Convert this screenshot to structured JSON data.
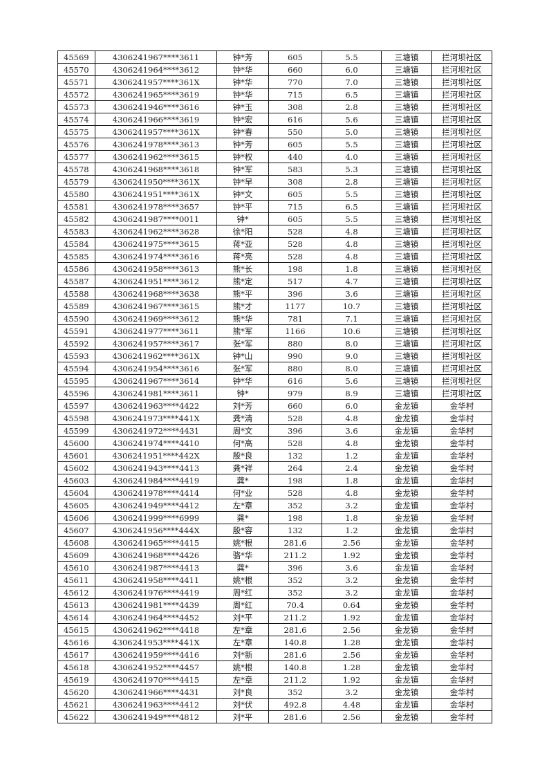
{
  "rows": [
    [
      "45569",
      "4306241967****3611",
      "钟*芳",
      "605",
      "5.5",
      "三塘镇",
      "拦河坝社区"
    ],
    [
      "45570",
      "4306241964****3612",
      "钟*华",
      "660",
      "6.0",
      "三塘镇",
      "拦河坝社区"
    ],
    [
      "45571",
      "4306241957****361X",
      "钟*华",
      "770",
      "7.0",
      "三塘镇",
      "拦河坝社区"
    ],
    [
      "45572",
      "4306241965****3619",
      "钟*华",
      "715",
      "6.5",
      "三塘镇",
      "拦河坝社区"
    ],
    [
      "45573",
      "4306241946****3616",
      "钟*玉",
      "308",
      "2.8",
      "三塘镇",
      "拦河坝社区"
    ],
    [
      "45574",
      "4306241966****3619",
      "钟*宏",
      "616",
      "5.6",
      "三塘镇",
      "拦河坝社区"
    ],
    [
      "45575",
      "4306241957****361X",
      "钟*春",
      "550",
      "5.0",
      "三塘镇",
      "拦河坝社区"
    ],
    [
      "45576",
      "4306241978****3613",
      "钟*芳",
      "605",
      "5.5",
      "三塘镇",
      "拦河坝社区"
    ],
    [
      "45577",
      "4306241962****3615",
      "钟*权",
      "440",
      "4.0",
      "三塘镇",
      "拦河坝社区"
    ],
    [
      "45578",
      "4306241968****3618",
      "钟*军",
      "583",
      "5.3",
      "三塘镇",
      "拦河坝社区"
    ],
    [
      "45579",
      "4306241950****361X",
      "钟*早",
      "308",
      "2.8",
      "三塘镇",
      "拦河坝社区"
    ],
    [
      "45580",
      "4306241951****361X",
      "钟*文",
      "605",
      "5.5",
      "三塘镇",
      "拦河坝社区"
    ],
    [
      "45581",
      "4306241978****3657",
      "钟*平",
      "715",
      "6.5",
      "三塘镇",
      "拦河坝社区"
    ],
    [
      "45582",
      "4306241987****0011",
      "钟*",
      "605",
      "5.5",
      "三塘镇",
      "拦河坝社区"
    ],
    [
      "45583",
      "4306241962****3628",
      "徐*阳",
      "528",
      "4.8",
      "三塘镇",
      "拦河坝社区"
    ],
    [
      "45584",
      "4306241975****3615",
      "蒋*亚",
      "528",
      "4.8",
      "三塘镇",
      "拦河坝社区"
    ],
    [
      "45585",
      "4306241974****3616",
      "蒋*亮",
      "528",
      "4.8",
      "三塘镇",
      "拦河坝社区"
    ],
    [
      "45586",
      "4306241958****3613",
      "熊*长",
      "198",
      "1.8",
      "三塘镇",
      "拦河坝社区"
    ],
    [
      "45587",
      "4306241951****3612",
      "熊*定",
      "517",
      "4.7",
      "三塘镇",
      "拦河坝社区"
    ],
    [
      "45588",
      "4306241968****3638",
      "熊*平",
      "396",
      "3.6",
      "三塘镇",
      "拦河坝社区"
    ],
    [
      "45589",
      "4306241967****3615",
      "熊*才",
      "1177",
      "10.7",
      "三塘镇",
      "拦河坝社区"
    ],
    [
      "45590",
      "4306241969****3612",
      "熊*华",
      "781",
      "7.1",
      "三塘镇",
      "拦河坝社区"
    ],
    [
      "45591",
      "4306241977****3611",
      "熊*军",
      "1166",
      "10.6",
      "三塘镇",
      "拦河坝社区"
    ],
    [
      "45592",
      "4306241957****3617",
      "张*军",
      "880",
      "8.0",
      "三塘镇",
      "拦河坝社区"
    ],
    [
      "45593",
      "4306241962****361X",
      "钟*山",
      "990",
      "9.0",
      "三塘镇",
      "拦河坝社区"
    ],
    [
      "45594",
      "4306241954****3616",
      "张*军",
      "880",
      "8.0",
      "三塘镇",
      "拦河坝社区"
    ],
    [
      "45595",
      "4306241967****3614",
      "钟*华",
      "616",
      "5.6",
      "三塘镇",
      "拦河坝社区"
    ],
    [
      "45596",
      "4306241981****3611",
      "钟*",
      "979",
      "8.9",
      "三塘镇",
      "拦河坝社区"
    ],
    [
      "45597",
      "4306241963****4422",
      "刘*芳",
      "660",
      "6.0",
      "金龙镇",
      "金华村"
    ],
    [
      "45598",
      "4306241973****441X",
      "龚*清",
      "528",
      "4.8",
      "金龙镇",
      "金华村"
    ],
    [
      "45599",
      "4306241972****4431",
      "周*文",
      "396",
      "3.6",
      "金龙镇",
      "金华村"
    ],
    [
      "45600",
      "4306241974****4410",
      "何*高",
      "528",
      "4.8",
      "金龙镇",
      "金华村"
    ],
    [
      "45601",
      "4306241951****442X",
      "殷*良",
      "132",
      "1.2",
      "金龙镇",
      "金华村"
    ],
    [
      "45602",
      "4306241943****4413",
      "龚*祥",
      "264",
      "2.4",
      "金龙镇",
      "金华村"
    ],
    [
      "45603",
      "4306241984****4419",
      "龚*",
      "198",
      "1.8",
      "金龙镇",
      "金华村"
    ],
    [
      "45604",
      "4306241978****4414",
      "何*业",
      "528",
      "4.8",
      "金龙镇",
      "金华村"
    ],
    [
      "45605",
      "4306241949****4412",
      "左*章",
      "352",
      "3.2",
      "金龙镇",
      "金华村"
    ],
    [
      "45606",
      "4306241999****6999",
      "龚*",
      "198",
      "1.8",
      "金龙镇",
      "金华村"
    ],
    [
      "45607",
      "4306241956****444X",
      "殷*容",
      "132",
      "1.2",
      "金龙镇",
      "金华村"
    ],
    [
      "45608",
      "4306241965****4415",
      "姚*根",
      "281.6",
      "2.56",
      "金龙镇",
      "金华村"
    ],
    [
      "45609",
      "4306241968****4426",
      "骆*华",
      "211.2",
      "1.92",
      "金龙镇",
      "金华村"
    ],
    [
      "45610",
      "4306241987****4413",
      "龚*",
      "396",
      "3.6",
      "金龙镇",
      "金华村"
    ],
    [
      "45611",
      "4306241958****4411",
      "姚*根",
      "352",
      "3.2",
      "金龙镇",
      "金华村"
    ],
    [
      "45612",
      "4306241976****4419",
      "周*红",
      "352",
      "3.2",
      "金龙镇",
      "金华村"
    ],
    [
      "45613",
      "4306241981****4439",
      "周*红",
      "70.4",
      "0.64",
      "金龙镇",
      "金华村"
    ],
    [
      "45614",
      "4306241964****4452",
      "刘*平",
      "211.2",
      "1.92",
      "金龙镇",
      "金华村"
    ],
    [
      "45615",
      "4306241962****4418",
      "左*章",
      "281.6",
      "2.56",
      "金龙镇",
      "金华村"
    ],
    [
      "45616",
      "4306241953****441X",
      "左*章",
      "140.8",
      "1.28",
      "金龙镇",
      "金华村"
    ],
    [
      "45617",
      "4306241959****4416",
      "刘*新",
      "281.6",
      "2.56",
      "金龙镇",
      "金华村"
    ],
    [
      "45618",
      "4306241952****4457",
      "姚*根",
      "140.8",
      "1.28",
      "金龙镇",
      "金华村"
    ],
    [
      "45619",
      "4306241970****4415",
      "左*章",
      "211.2",
      "1.92",
      "金龙镇",
      "金华村"
    ],
    [
      "45620",
      "4306241966****4431",
      "刘*良",
      "352",
      "3.2",
      "金龙镇",
      "金华村"
    ],
    [
      "45621",
      "4306241963****4412",
      "刘*伏",
      "492.8",
      "4.48",
      "金龙镇",
      "金华村"
    ],
    [
      "45622",
      "4306241949****4812",
      "刘*平",
      "281.6",
      "2.56",
      "金龙镇",
      "金华村"
    ]
  ]
}
